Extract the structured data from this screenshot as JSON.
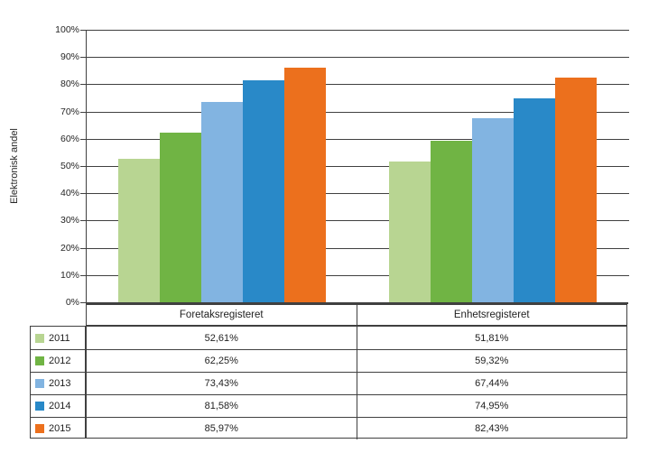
{
  "chart_data": {
    "type": "bar",
    "title": "",
    "ylabel": "Elektronisk andel",
    "xlabel": "",
    "ylim": [
      0,
      100
    ],
    "ytick_labels": [
      "0%",
      "10%",
      "20%",
      "30%",
      "40%",
      "50%",
      "60%",
      "70%",
      "80%",
      "90%",
      "100%"
    ],
    "grid": true,
    "legend_position": "table-left",
    "categories": [
      "Foretaksregisteret",
      "Enhetsregisteret"
    ],
    "series": [
      {
        "name": "2011",
        "color": "#b8d592",
        "values": [
          52.61,
          51.81
        ],
        "display": [
          "52,61%",
          "51,81%"
        ]
      },
      {
        "name": "2012",
        "color": "#70b444",
        "values": [
          62.25,
          59.32
        ],
        "display": [
          "62,25%",
          "59,32%"
        ]
      },
      {
        "name": "2013",
        "color": "#82b4e1",
        "values": [
          73.43,
          67.44
        ],
        "display": [
          "73,43%",
          "67,44%"
        ]
      },
      {
        "name": "2014",
        "color": "#2989c8",
        "values": [
          81.58,
          74.95
        ],
        "display": [
          "81,58%",
          "74,95%"
        ]
      },
      {
        "name": "2015",
        "color": "#ec701d",
        "values": [
          85.97,
          82.43
        ],
        "display": [
          "85,97%",
          "82,43%"
        ]
      }
    ]
  },
  "colors": {
    "gridline": "#404040",
    "table_border": "#404040",
    "text": "#262626"
  }
}
